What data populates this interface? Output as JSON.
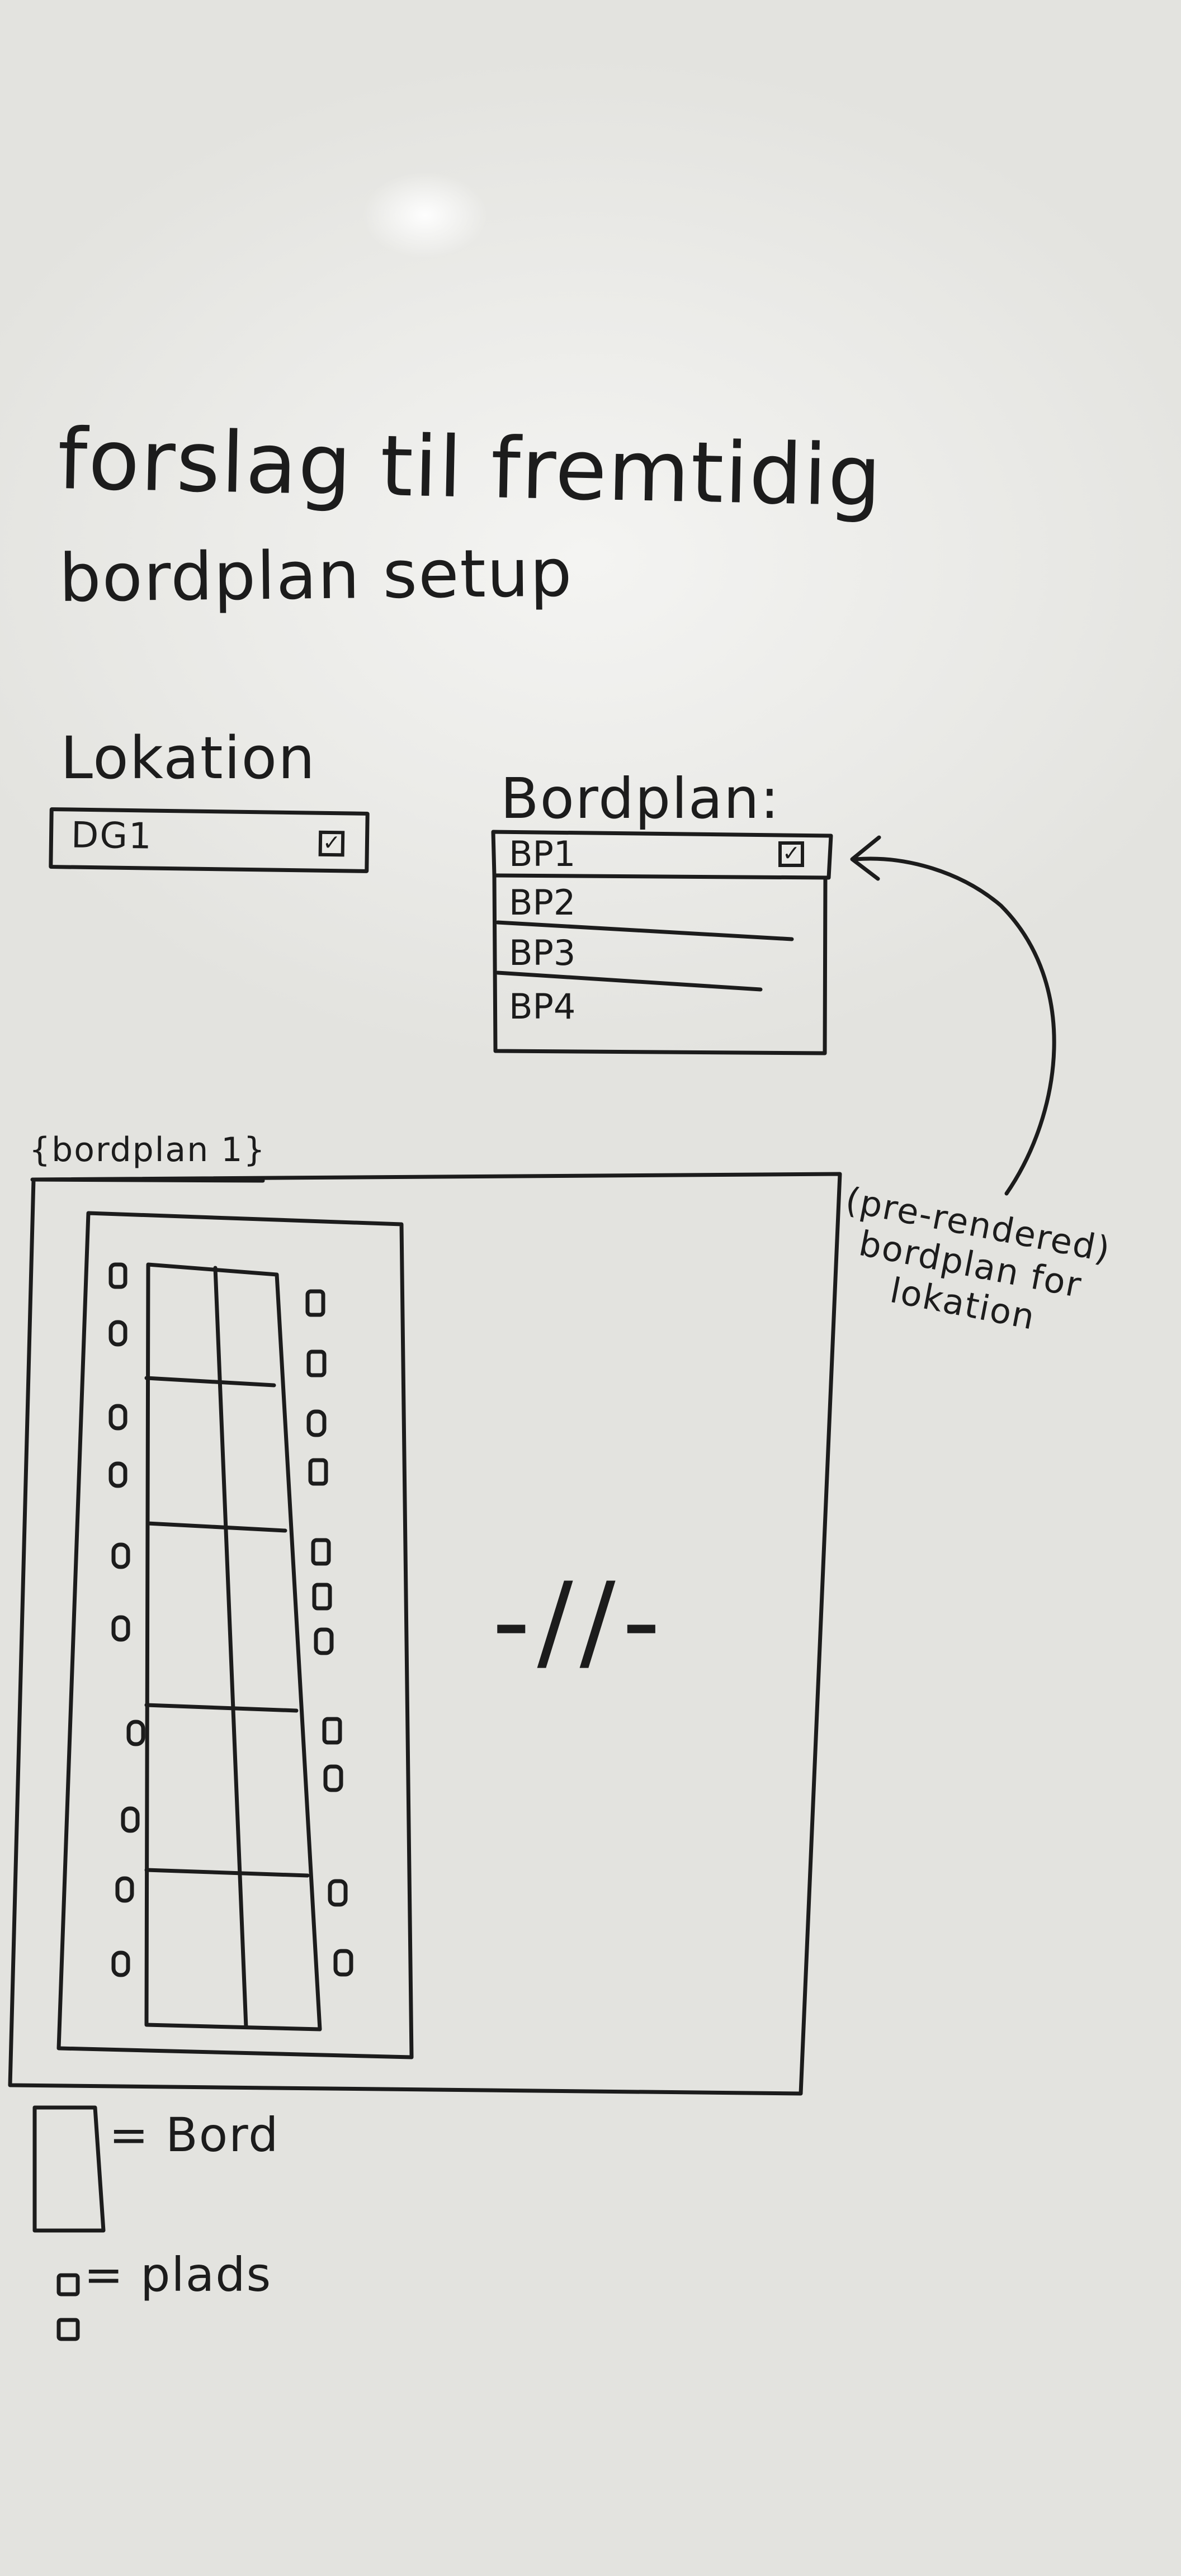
{
  "title": {
    "line1": "forslag til fremtidig",
    "line2": "bordplan setup"
  },
  "lokation": {
    "label": "Lokation",
    "selected_value": "DG1",
    "dropdown_icon": "checkbox-icon"
  },
  "bordplan": {
    "label": "Bordplan:",
    "options": [
      "BP1",
      "BP2",
      "BP3",
      "BP4"
    ],
    "selected": "BP1",
    "dropdown_icon": "checkbox-icon"
  },
  "preview": {
    "caption": "{bordplan 1}",
    "annotation": "(pre-rendered)\nbordplan for\nlokation",
    "ditto_mark": "-//-"
  },
  "legend": {
    "bord": "= Bord",
    "plads": "= plads"
  },
  "colors": {
    "ink": "#1c1c1c",
    "board": "#ebebe8"
  }
}
